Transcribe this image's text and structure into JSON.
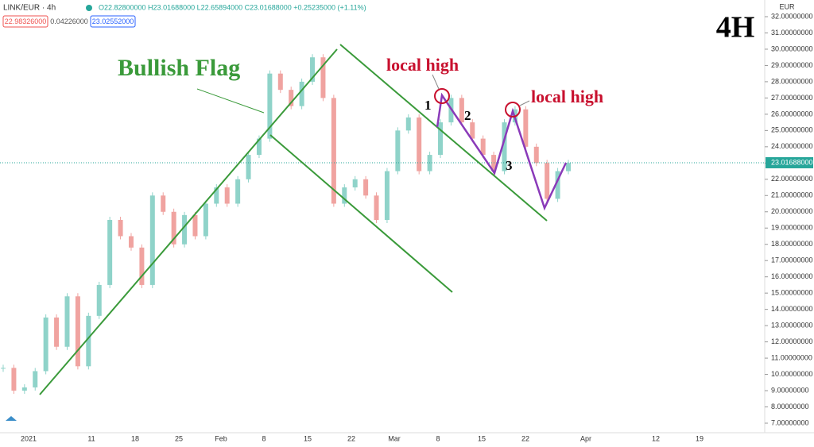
{
  "header": {
    "symbol": "LINK/EUR · 4h",
    "ohlc": "O22.82800000 H23.01688000 L22.65894000 C23.01688000 +0.25235000 (+1.11%)",
    "bid": "22.98326000",
    "spread": "0.04226000",
    "ask": "23.02552000"
  },
  "timeframe": "4H",
  "annotations": {
    "pattern": "Bullish Flag",
    "high_1": "local high",
    "high_2": "local high",
    "n1": "1",
    "n2": "2",
    "n3": "3"
  },
  "chart": {
    "type": "candlestick",
    "currency": "EUR",
    "ylim": [
      7,
      32
    ],
    "yticks": [
      {
        "value": 7,
        "label": "7.00000000"
      },
      {
        "value": 8,
        "label": "8.00000000"
      },
      {
        "value": 9,
        "label": "9.00000000"
      },
      {
        "value": 10,
        "label": "10.00000000"
      },
      {
        "value": 11,
        "label": "11.00000000"
      },
      {
        "value": 12,
        "label": "12.00000000"
      },
      {
        "value": 13,
        "label": "13.00000000"
      },
      {
        "value": 14,
        "label": "14.00000000"
      },
      {
        "value": 15,
        "label": "15.00000000"
      },
      {
        "value": 16,
        "label": "16.00000000"
      },
      {
        "value": 17,
        "label": "17.00000000"
      },
      {
        "value": 18,
        "label": "18.00000000"
      },
      {
        "value": 19,
        "label": "19.00000000"
      },
      {
        "value": 20,
        "label": "20.00000000"
      },
      {
        "value": 21,
        "label": "21.00000000"
      },
      {
        "value": 22,
        "label": "22.00000000"
      },
      {
        "value": 23,
        "label": "23.00000000"
      },
      {
        "value": 24,
        "label": "24.00000000"
      },
      {
        "value": 25,
        "label": "25.00000000"
      },
      {
        "value": 26,
        "label": "26.00000000"
      },
      {
        "value": 27,
        "label": "27.00000000"
      },
      {
        "value": 28,
        "label": "28.00000000"
      },
      {
        "value": 29,
        "label": "29.00000000"
      },
      {
        "value": 30,
        "label": "30.00000000"
      },
      {
        "value": 31,
        "label": "31.00000000"
      },
      {
        "value": 32,
        "label": "32.00000000"
      }
    ],
    "xticks": [
      "2021",
      "11",
      "18",
      "25",
      "Feb",
      "8",
      "15",
      "22",
      "Mar",
      "8",
      "15",
      "22",
      "Apr",
      "12",
      "19"
    ],
    "last_price": {
      "value": 23.01688,
      "label": "23.01688000"
    },
    "closes": [
      10.4,
      9.0,
      9.2,
      10.2,
      13.5,
      11.7,
      14.8,
      10.5,
      13.6,
      15.5,
      19.5,
      18.5,
      17.8,
      15.5,
      21.0,
      20.0,
      18.0,
      19.8,
      18.5,
      20.5,
      21.5,
      20.5,
      22.0,
      23.5,
      24.5,
      28.5,
      27.5,
      26.5,
      28.0,
      29.5,
      27.0,
      20.5,
      21.5,
      22.0,
      21.0,
      19.5,
      22.5,
      25.0,
      25.8,
      22.5,
      23.5,
      25.5,
      27.0,
      25.5,
      24.5,
      23.5,
      22.5,
      25.5,
      26.3,
      24.0,
      23.0,
      20.8,
      22.5,
      23.0
    ]
  }
}
